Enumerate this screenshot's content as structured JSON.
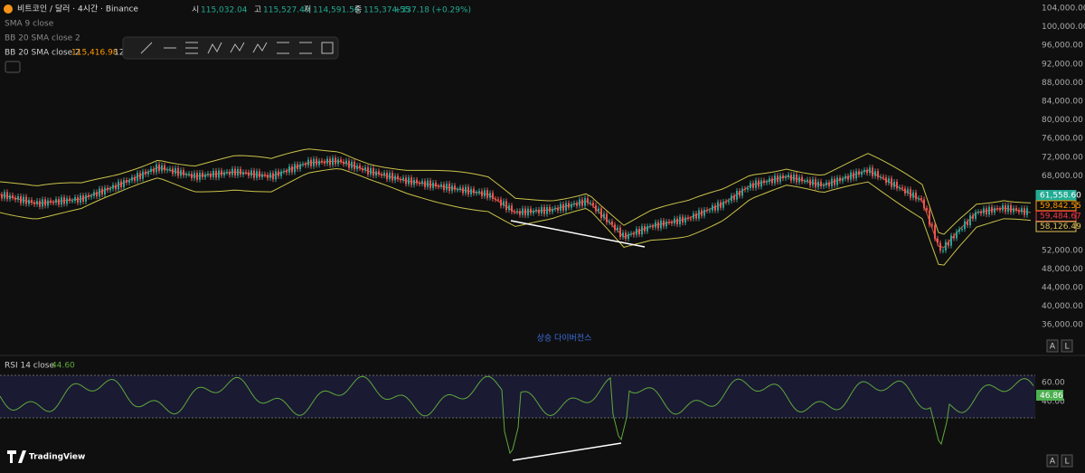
{
  "header": {
    "symbol": "비트코인 / 달러 · 4시간 · Binance",
    "ohlc": [
      {
        "label": "시",
        "value": "115,032.04"
      },
      {
        "label": "고",
        "value": "115,527.40"
      },
      {
        "label": "저",
        "value": "114,591.56"
      },
      {
        "label": "종",
        "value": "115,374.55"
      }
    ],
    "change": "+337.18 (+0.29%)"
  },
  "indicators": [
    {
      "name": "SMA 9 close"
    },
    {
      "name": "BB 20 SMA close 2"
    },
    {
      "name": "BB 20 SMA close 2",
      "values": [
        "115,416.98",
        "12"
      ]
    }
  ],
  "price_axis": [
    "104,000.00",
    "100,000.00",
    "96,000.00",
    "92,000.00",
    "88,000.00",
    "84,000.00",
    "80,000.00",
    "76,000.00",
    "72,000.00",
    "68,000.00",
    "52,000.00",
    "48,000.00",
    "44,000.00",
    "40,000.00",
    "36,000.00"
  ],
  "price_tags": [
    {
      "label": "61,558.60",
      "color": "#22ab94"
    },
    {
      "label": "59,842.55",
      "color": "#ff9800"
    },
    {
      "label": "59,484.67",
      "color": "#f23645"
    },
    {
      "label": "58,126.49",
      "color": "#e0c255"
    }
  ],
  "annotation": "상승 다이버전스",
  "rsi": {
    "title": "RSI 14 close",
    "value": "44.60",
    "axis": [
      "60.00",
      "40.00"
    ],
    "tag": "46.86"
  },
  "buttons": [
    "A",
    "L"
  ],
  "brand": "TradingView"
}
